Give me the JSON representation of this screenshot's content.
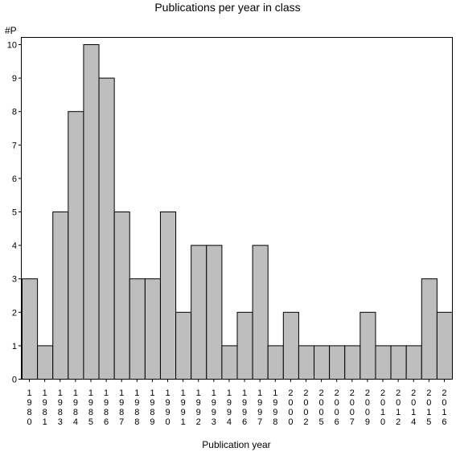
{
  "chart_data": {
    "type": "bar",
    "title": "Publications per year in class",
    "xlabel": "Publication year",
    "ylabel": "#P",
    "ylim": [
      0,
      10
    ],
    "yticks": [
      0,
      1,
      2,
      3,
      4,
      5,
      6,
      7,
      8,
      9,
      10
    ],
    "grid": false,
    "categories": [
      "1980",
      "1981",
      "1983",
      "1984",
      "1985",
      "1986",
      "1987",
      "1988",
      "1989",
      "1990",
      "1991",
      "1992",
      "1993",
      "1994",
      "1996",
      "1997",
      "1998",
      "2000",
      "2002",
      "2005",
      "2006",
      "2007",
      "2009",
      "2010",
      "2012",
      "2014",
      "2015",
      "2016"
    ],
    "values": [
      3,
      1,
      5,
      8,
      10,
      9,
      5,
      3,
      3,
      5,
      2,
      4,
      4,
      1,
      2,
      4,
      1,
      2,
      1,
      1,
      1,
      1,
      2,
      1,
      1,
      1,
      3,
      2
    ],
    "colors": {
      "bar": "#bebebe",
      "edge": "#000000"
    }
  }
}
